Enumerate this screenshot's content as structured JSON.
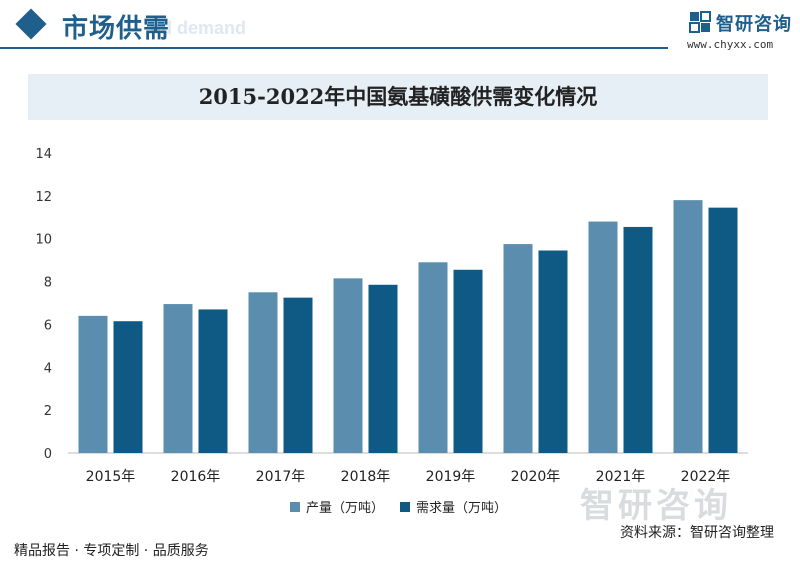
{
  "header": {
    "section_title": "市场供需",
    "ghost_text": "nd demand",
    "brand_name": "智研咨询",
    "brand_url": "www.chyxx.com"
  },
  "chart_data": {
    "type": "bar",
    "title": "2015-2022年中国氨基磺酸供需变化情况",
    "categories": [
      "2015年",
      "2016年",
      "2017年",
      "2018年",
      "2019年",
      "2020年",
      "2021年",
      "2022年"
    ],
    "series": [
      {
        "name": "产量（万吨）",
        "values": [
          6.4,
          6.95,
          7.5,
          8.15,
          8.9,
          9.75,
          10.8,
          11.8
        ],
        "color": "#5b8eae"
      },
      {
        "name": "需求量（万吨）",
        "values": [
          6.15,
          6.7,
          7.25,
          7.85,
          8.55,
          9.45,
          10.55,
          11.45
        ],
        "color": "#0f5a85"
      }
    ],
    "xlabel": "",
    "ylabel": "",
    "ylim": [
      0,
      14
    ],
    "yticks": [
      0,
      2,
      4,
      6,
      8,
      10,
      12,
      14
    ],
    "grid": false,
    "legend": "bottom-center"
  },
  "footer": {
    "left_text": "精品报告 · 专项定制 · 品质服务",
    "source_text": "资料来源：智研咨询整理"
  },
  "watermark": {
    "text": "智研咨询"
  },
  "colors": {
    "brand": "#1f5f8b",
    "title_bg": "#e6eef6"
  }
}
